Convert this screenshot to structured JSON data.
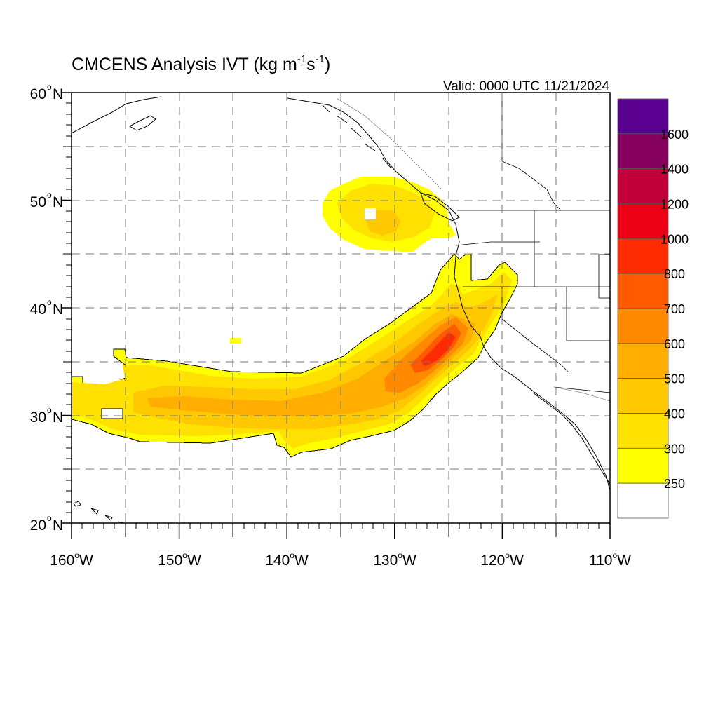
{
  "title_main": "CMCENS Analysis IVT (kg m",
  "title_exp1": "-1",
  "title_mid": "s",
  "title_exp2": "-1",
  "title_close": ")",
  "valid": "Valid: 0000 UTC 11/21/2024",
  "degree_symbol": "o",
  "lat_ticks": [
    {
      "num": "60",
      "hemi": "N",
      "value": 60
    },
    {
      "num": "50",
      "hemi": "N",
      "value": 50
    },
    {
      "num": "40",
      "hemi": "N",
      "value": 40
    },
    {
      "num": "30",
      "hemi": "N",
      "value": 30
    },
    {
      "num": "20",
      "hemi": "N",
      "value": 20
    }
  ],
  "lon_ticks": [
    {
      "num": "160",
      "hemi": "W",
      "value": -160
    },
    {
      "num": "150",
      "hemi": "W",
      "value": -150
    },
    {
      "num": "140",
      "hemi": "W",
      "value": -140
    },
    {
      "num": "130",
      "hemi": "W",
      "value": -130
    },
    {
      "num": "120",
      "hemi": "W",
      "value": -120
    },
    {
      "num": "110",
      "hemi": "W",
      "value": -110
    }
  ],
  "map_extent": {
    "lon": [
      -160,
      -110
    ],
    "lat": [
      20,
      60
    ]
  },
  "colorbar": {
    "labels": [
      "1600",
      "1400",
      "1200",
      "1000",
      "800",
      "700",
      "600",
      "500",
      "400",
      "300",
      "250"
    ],
    "colors_top_to_bottom": [
      "#5a0090",
      "#86005e",
      "#c2003a",
      "#ec0016",
      "#ff2b00",
      "#ff5a00",
      "#ff8a00",
      "#ffae00",
      "#ffc800",
      "#ffe100",
      "#ffff00",
      "#ffffff"
    ]
  },
  "chart_data": {
    "type": "heatmap",
    "title": "CMCENS Analysis IVT (kg m-1 s-1)",
    "valid_time": "0000 UTC 11/21/2024",
    "field": "IVT",
    "units": "kg m-1 s-1",
    "x_range": [
      -160,
      -110
    ],
    "y_range": [
      20,
      60
    ],
    "xlabel": "",
    "ylabel": "",
    "grid": true,
    "levels": [
      250,
      300,
      400,
      500,
      600,
      700,
      800,
      1000,
      1200,
      1400,
      1600
    ],
    "features": [
      {
        "name": "",
        "kind": "atmospheric river plume",
        "lon_range": [
          -160,
          -119
        ],
        "lat_range": [
          26.5,
          45
        ],
        "max_level": "700-800"
      },
      {
        "name": "",
        "kind": "closed low moisture ring",
        "lon_range": [
          -137,
          -128
        ],
        "lat_range": [
          46.5,
          52
        ],
        "max_level": "300-400"
      }
    ]
  }
}
